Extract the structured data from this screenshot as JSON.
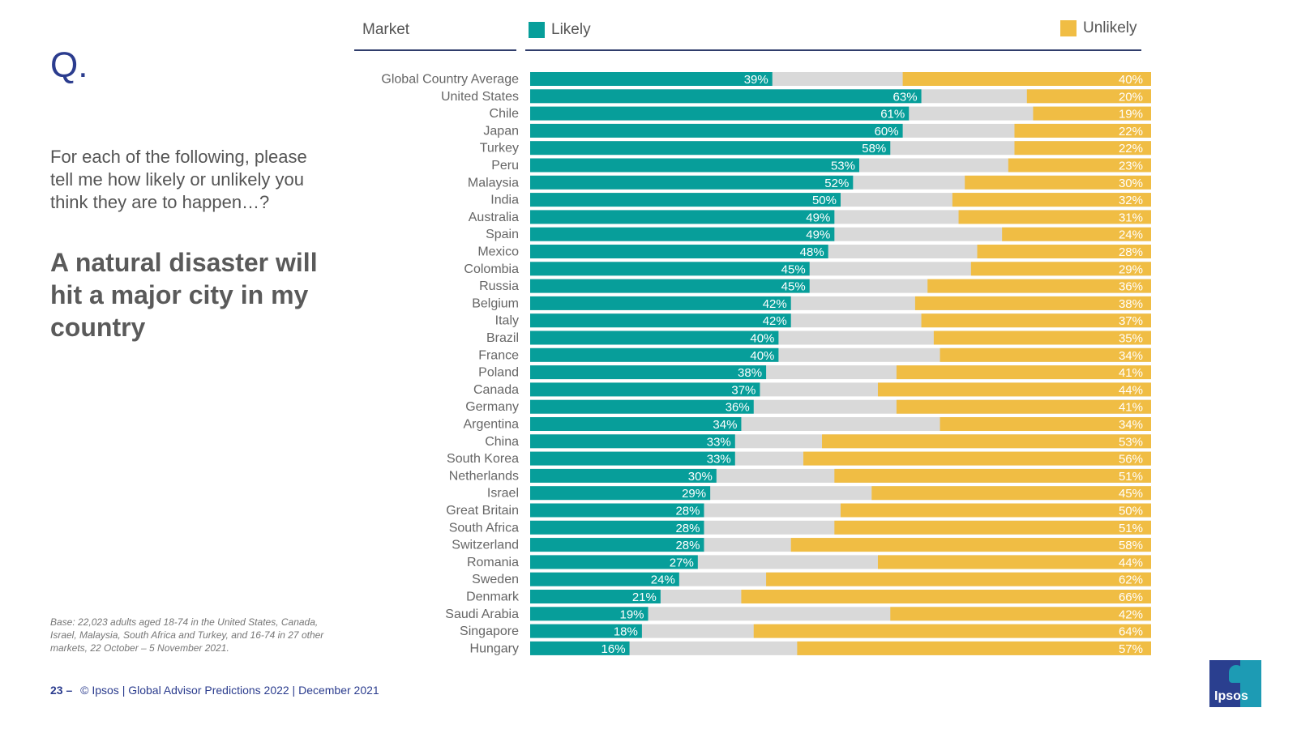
{
  "slide": {
    "q_mark": "Q.",
    "question": "For each of the following, please tell me how likely or unlikely you think they are to happen…?",
    "statement": "A natural disaster will hit a major city in my country",
    "base_note": "Base: 22,023 adults aged 18-74 in the United States, Canada, Israel, Malaysia, South Africa and Turkey, and 16-74 in 27 other markets, 22 October – 5 November 2021.",
    "page_number": "23 –",
    "footer_text": "© Ipsos | Global Advisor Predictions 2022 | December 2021",
    "logo_text": "Ipsos"
  },
  "colors": {
    "likely": "#079e9a",
    "unlikely": "#f0bd44",
    "neither": "#d9d9d9",
    "title_blue": "#2b3c8e",
    "rule": "#2f3d6b"
  },
  "chart_data": {
    "type": "bar",
    "orientation": "horizontal-stacked",
    "column_header": "Market",
    "legend": [
      "Likely",
      "Unlikely"
    ],
    "legend_placement": "top",
    "xlim": [
      0,
      100
    ],
    "categories": [
      "Global Country Average",
      "United States",
      "Chile",
      "Japan",
      "Turkey",
      "Peru",
      "Malaysia",
      "India",
      "Australia",
      "Spain",
      "Mexico",
      "Colombia",
      "Russia",
      "Belgium",
      "Italy",
      "Brazil",
      "France",
      "Poland",
      "Canada",
      "Germany",
      "Argentina",
      "China",
      "South Korea",
      "Netherlands",
      "Israel",
      "Great Britain",
      "South Africa",
      "Switzerland",
      "Romania",
      "Sweden",
      "Denmark",
      "Saudi Arabia",
      "Singapore",
      "Hungary"
    ],
    "series": [
      {
        "name": "Likely",
        "values": [
          39,
          63,
          61,
          60,
          58,
          53,
          52,
          50,
          49,
          49,
          48,
          45,
          45,
          42,
          42,
          40,
          40,
          38,
          37,
          36,
          34,
          33,
          33,
          30,
          29,
          28,
          28,
          28,
          27,
          24,
          21,
          19,
          18,
          16
        ]
      },
      {
        "name": "Unlikely",
        "values": [
          40,
          20,
          19,
          22,
          22,
          23,
          30,
          32,
          31,
          24,
          28,
          29,
          36,
          38,
          37,
          35,
          34,
          41,
          44,
          41,
          34,
          53,
          56,
          51,
          45,
          50,
          51,
          58,
          44,
          62,
          66,
          42,
          64,
          57
        ]
      }
    ]
  }
}
